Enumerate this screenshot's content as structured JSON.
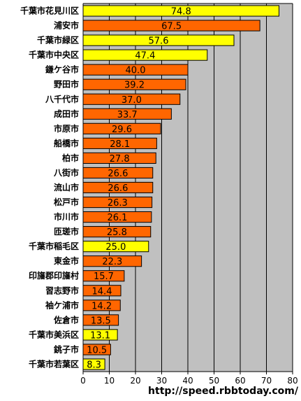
{
  "chart_data": {
    "type": "bar",
    "orientation": "horizontal",
    "categories": [
      "千葉市花見川区",
      "浦安市",
      "千葉市緑区",
      "千葉市中央区",
      "鎌ケ谷市",
      "野田市",
      "八千代市",
      "成田市",
      "市原市",
      "船橋市",
      "柏市",
      "八街市",
      "流山市",
      "松戸市",
      "市川市",
      "匝瑳市",
      "千葉市稲毛区",
      "東金市",
      "印旛郡印旛村",
      "習志野市",
      "袖ケ浦市",
      "佐倉市",
      "千葉市美浜区",
      "銚子市",
      "千葉市若葉区"
    ],
    "values": [
      74.8,
      67.5,
      57.6,
      47.4,
      40.0,
      39.2,
      37.0,
      33.7,
      29.6,
      28.1,
      27.8,
      26.6,
      26.6,
      26.3,
      26.1,
      25.8,
      25.0,
      22.3,
      15.7,
      14.4,
      14.2,
      13.5,
      13.1,
      10.5,
      8.3
    ],
    "value_labels": [
      "74.8",
      "67.5",
      "57.6",
      "47.4",
      "40.0",
      "39.2",
      "37.0",
      "33.7",
      "29.6",
      "28.1",
      "27.8",
      "26.6",
      "26.6",
      "26.3",
      "26.1",
      "25.8",
      "25.0",
      "22.3",
      "15.7",
      "14.4",
      "14.2",
      "13.5",
      "13.1",
      "10.5",
      "8.3"
    ],
    "highlight": [
      true,
      false,
      true,
      true,
      false,
      false,
      false,
      false,
      false,
      false,
      false,
      false,
      false,
      false,
      false,
      false,
      true,
      false,
      false,
      false,
      false,
      false,
      true,
      false,
      true
    ],
    "xlim": [
      0,
      80
    ],
    "xticks": [
      "0",
      "10",
      "20",
      "30",
      "40",
      "50",
      "60",
      "70",
      "80"
    ],
    "grid": true,
    "colors": {
      "highlight": "#ffff00",
      "normal": "#ff6600",
      "plot_bg": "#c0c0c0",
      "edge": "#000000"
    }
  },
  "footer": {
    "url": "http://speed.rbbtoday.com/"
  }
}
